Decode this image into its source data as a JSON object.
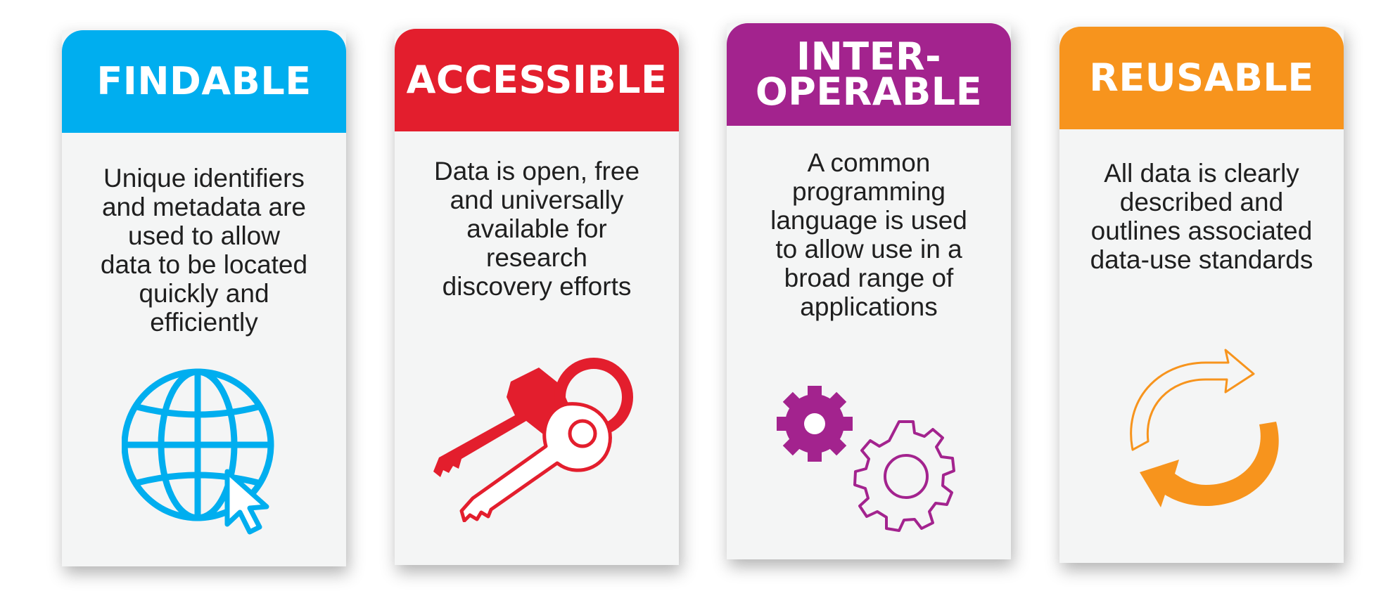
{
  "cards": [
    {
      "title_lines": [
        "FINDABLE"
      ],
      "description": "Unique identifiers\nand metadata are\nused to allow\ndata to be located\nquickly and\nefficiently",
      "icon": "globe-with-cursor-icon",
      "color": "#00aeef"
    },
    {
      "title_lines": [
        "ACCESSIBLE"
      ],
      "description": "Data is open, free\nand universally\navailable for\nresearch\ndiscovery efforts",
      "icon": "keys-icon",
      "color": "#e31e2d"
    },
    {
      "title_lines": [
        "INTER-",
        "OPERABLE"
      ],
      "description": "A common\nprogramming\nlanguage is used\nto allow use in a\nbroad range of\napplications",
      "icon": "gears-icon",
      "color": "#a3238e"
    },
    {
      "title_lines": [
        "REUSABLE"
      ],
      "description": "All data is clearly\ndescribed and\noutlines associated\ndata-use standards",
      "icon": "recycle-arrows-icon",
      "color": "#f7941d"
    }
  ]
}
